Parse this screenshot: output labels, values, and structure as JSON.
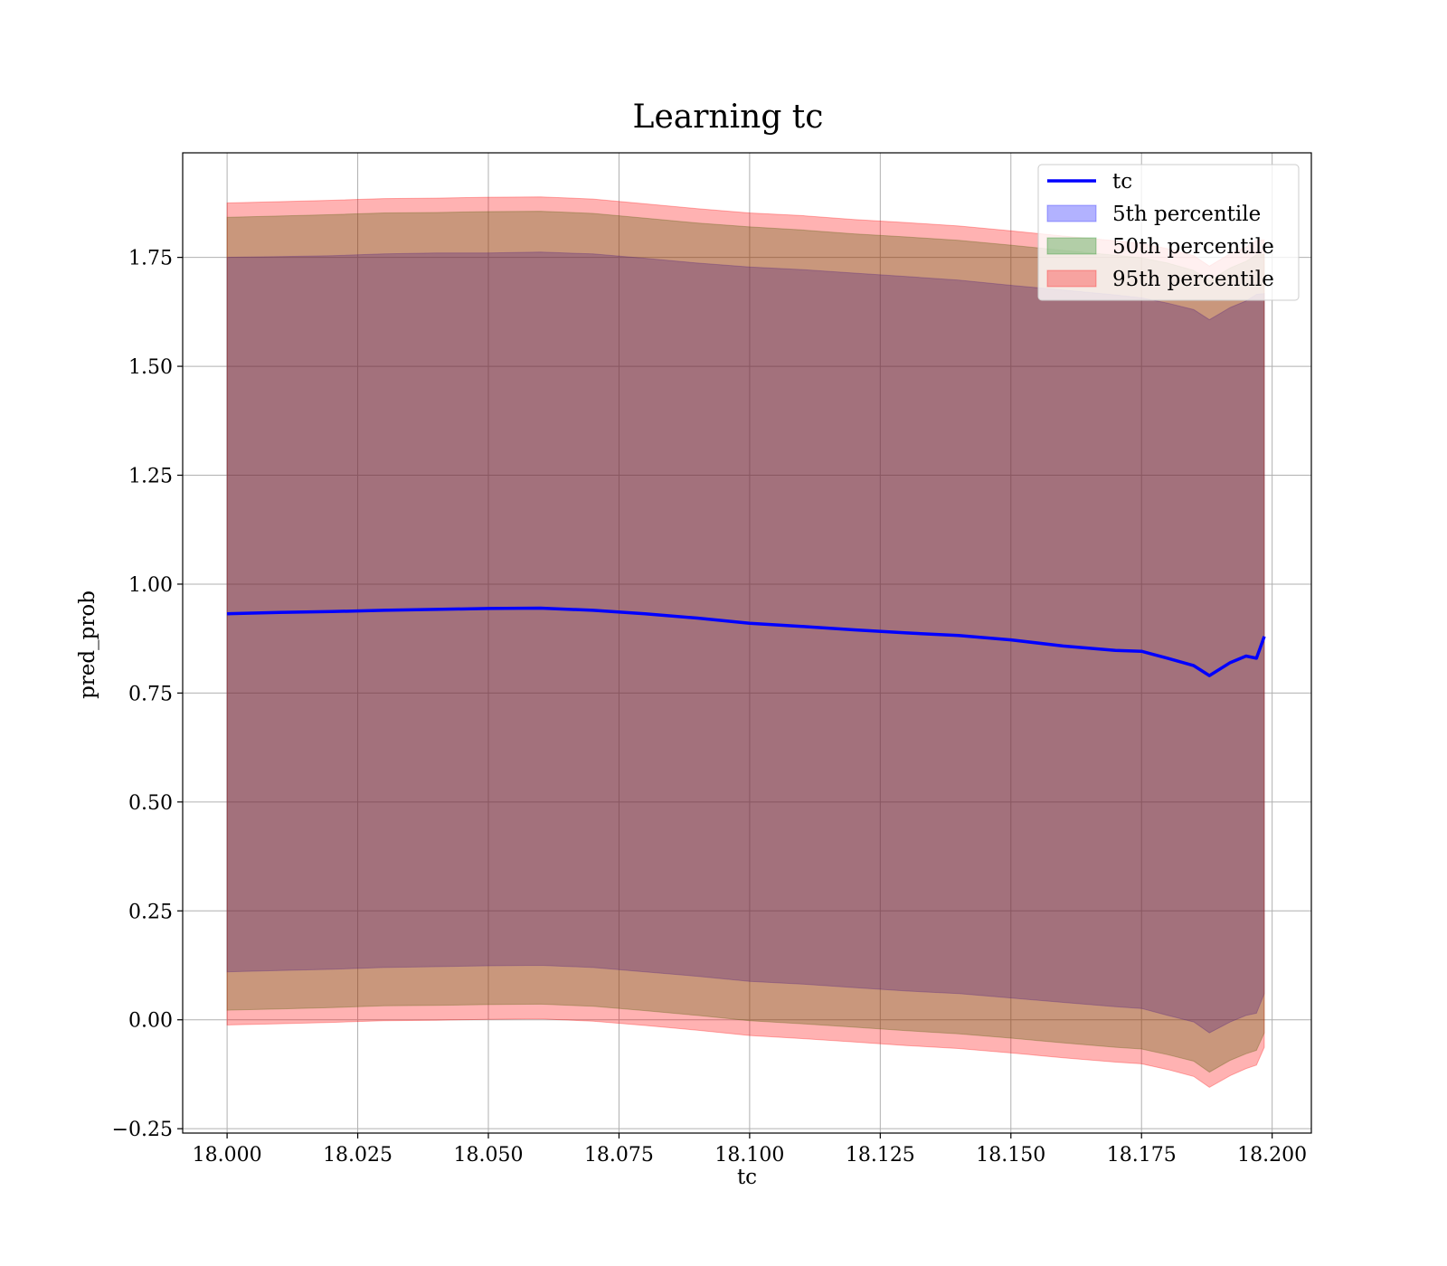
{
  "chart_data": {
    "type": "area",
    "title": "Learning tc",
    "xlabel": "tc",
    "ylabel": "pred_prob",
    "xlim": [
      17.9915,
      18.2075
    ],
    "ylim": [
      -0.26,
      1.99
    ],
    "xticks": [
      18.0,
      18.025,
      18.05,
      18.075,
      18.1,
      18.125,
      18.15,
      18.175,
      18.2
    ],
    "xtick_labels": [
      "18.000",
      "18.025",
      "18.050",
      "18.075",
      "18.100",
      "18.125",
      "18.150",
      "18.175",
      "18.200"
    ],
    "yticks": [
      -0.25,
      0.0,
      0.25,
      0.5,
      0.75,
      1.0,
      1.25,
      1.5,
      1.75
    ],
    "ytick_labels": [
      "−0.25",
      "0.00",
      "0.25",
      "0.50",
      "0.75",
      "1.00",
      "1.25",
      "1.50",
      "1.75"
    ],
    "grid": true,
    "legend_position": "top-right",
    "x": [
      18.0,
      18.01,
      18.02,
      18.03,
      18.04,
      18.05,
      18.06,
      18.07,
      18.08,
      18.09,
      18.1,
      18.11,
      18.12,
      18.13,
      18.14,
      18.15,
      18.16,
      18.17,
      18.175,
      18.18,
      18.185,
      18.188,
      18.192,
      18.195,
      18.197,
      18.1985
    ],
    "line": {
      "name": "tc",
      "color": "#0000ff",
      "values": [
        0.932,
        0.935,
        0.937,
        0.94,
        0.942,
        0.944,
        0.945,
        0.94,
        0.932,
        0.922,
        0.91,
        0.903,
        0.895,
        0.888,
        0.882,
        0.872,
        0.858,
        0.848,
        0.846,
        0.83,
        0.813,
        0.79,
        0.82,
        0.835,
        0.83,
        0.88
      ]
    },
    "bands": [
      {
        "name": "5th percentile",
        "color": "#0000ff",
        "lower": [
          0.11,
          0.113,
          0.116,
          0.12,
          0.122,
          0.124,
          0.125,
          0.12,
          0.11,
          0.1,
          0.088,
          0.082,
          0.074,
          0.066,
          0.06,
          0.05,
          0.04,
          0.03,
          0.026,
          0.01,
          -0.005,
          -0.03,
          -0.005,
          0.01,
          0.015,
          0.06
        ],
        "upper": [
          1.75,
          1.752,
          1.754,
          1.758,
          1.76,
          1.76,
          1.762,
          1.758,
          1.748,
          1.737,
          1.728,
          1.722,
          1.714,
          1.706,
          1.698,
          1.686,
          1.675,
          1.664,
          1.657,
          1.645,
          1.63,
          1.607,
          1.635,
          1.65,
          1.665,
          1.667
        ]
      },
      {
        "name": "50th percentile",
        "color": "#008000",
        "lower": [
          0.022,
          0.025,
          0.028,
          0.032,
          0.033,
          0.035,
          0.036,
          0.031,
          0.021,
          0.01,
          -0.002,
          -0.009,
          -0.017,
          -0.025,
          -0.032,
          -0.042,
          -0.053,
          -0.063,
          -0.067,
          -0.08,
          -0.095,
          -0.12,
          -0.093,
          -0.078,
          -0.07,
          -0.03
        ],
        "upper": [
          1.842,
          1.845,
          1.848,
          1.852,
          1.853,
          1.855,
          1.856,
          1.851,
          1.84,
          1.829,
          1.82,
          1.813,
          1.804,
          1.797,
          1.789,
          1.778,
          1.766,
          1.755,
          1.749,
          1.737,
          1.72,
          1.697,
          1.726,
          1.741,
          1.756,
          1.757
        ]
      },
      {
        "name": "95th percentile",
        "color": "#ff0000",
        "lower": [
          -0.012,
          -0.009,
          -0.006,
          -0.002,
          -0.001,
          0.001,
          0.002,
          -0.003,
          -0.013,
          -0.024,
          -0.036,
          -0.043,
          -0.051,
          -0.059,
          -0.066,
          -0.076,
          -0.087,
          -0.097,
          -0.101,
          -0.114,
          -0.13,
          -0.155,
          -0.128,
          -0.112,
          -0.104,
          -0.063
        ],
        "upper": [
          1.875,
          1.878,
          1.881,
          1.885,
          1.886,
          1.888,
          1.889,
          1.884,
          1.873,
          1.862,
          1.852,
          1.846,
          1.837,
          1.83,
          1.822,
          1.811,
          1.799,
          1.788,
          1.782,
          1.77,
          1.754,
          1.73,
          1.759,
          1.774,
          1.789,
          1.79
        ]
      }
    ]
  }
}
